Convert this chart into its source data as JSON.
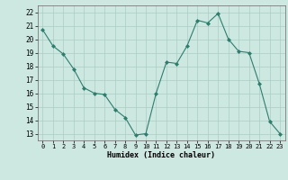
{
  "x": [
    0,
    1,
    2,
    3,
    4,
    5,
    6,
    7,
    8,
    9,
    10,
    11,
    12,
    13,
    14,
    15,
    16,
    17,
    18,
    19,
    20,
    21,
    22,
    23
  ],
  "y": [
    20.7,
    19.5,
    18.9,
    17.8,
    16.4,
    16.0,
    15.9,
    14.8,
    14.2,
    12.9,
    13.0,
    16.0,
    18.3,
    18.2,
    19.5,
    21.4,
    21.2,
    21.9,
    20.0,
    19.1,
    19.0,
    16.7,
    13.9,
    13.0
  ],
  "line_color": "#2e7d6e",
  "marker": "D",
  "marker_size": 2.0,
  "bg_color": "#cce8e0",
  "grid_color": "#aaccc4",
  "xlabel": "Humidex (Indice chaleur)",
  "ylim": [
    12.5,
    22.5
  ],
  "xlim": [
    -0.5,
    23.5
  ],
  "yticks": [
    13,
    14,
    15,
    16,
    17,
    18,
    19,
    20,
    21,
    22
  ],
  "xticks": [
    0,
    1,
    2,
    3,
    4,
    5,
    6,
    7,
    8,
    9,
    10,
    11,
    12,
    13,
    14,
    15,
    16,
    17,
    18,
    19,
    20,
    21,
    22,
    23
  ]
}
